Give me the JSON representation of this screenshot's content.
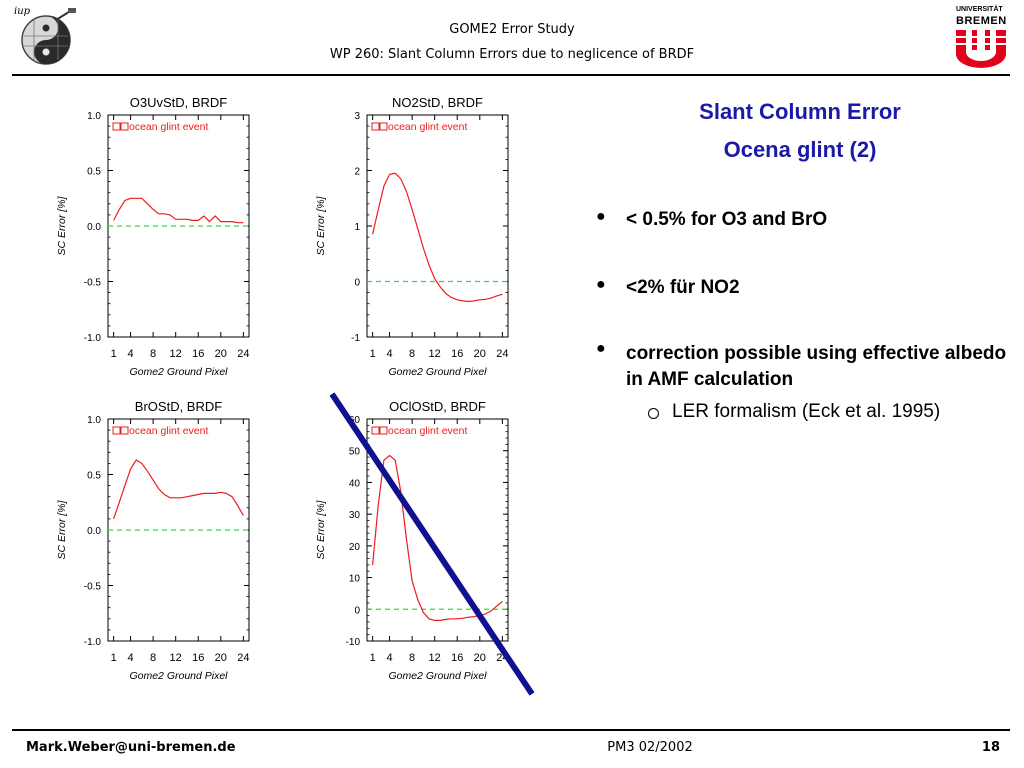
{
  "header": {
    "title": "GOME2 Error Study",
    "subtitle": "WP 260: Slant Column Errors due to neglicence of  BRDF"
  },
  "logos": {
    "left_logo_text": "iup",
    "right_logo_text_1": "UNIVERSITÄT",
    "right_logo_text_2": "BREMEN"
  },
  "slide": {
    "title_line1": "Slant Column Error",
    "title_line2": "Ocena glint (2)",
    "bullets": [
      "< 0.5% for O3 and BrO",
      "<2% für NO2",
      "correction possible using effective albedo in AMF calculation"
    ],
    "sub_bullet": "LER formalism (Eck et al. 1995)"
  },
  "footer": {
    "email": "Mark.Weber@uni-bremen.de",
    "date": "PM3 02/2002",
    "page": "18"
  },
  "colors": {
    "accent": "#1a1aa6",
    "series": "#ee1c1c",
    "zero_line": "#33dd33",
    "strike": "#101090"
  },
  "chart_data": [
    {
      "type": "line",
      "title": "O3UvStD, BRDF",
      "xlabel": "Gome2 Ground Pixel",
      "ylabel": "SC Error [%]",
      "legend": "ocean glint event",
      "xlim": [
        0,
        25
      ],
      "ylim": [
        -1.0,
        1.0
      ],
      "xticks": [
        1,
        4,
        8,
        12,
        16,
        20,
        24
      ],
      "yticks": [
        1.0,
        0.5,
        0.0,
        -0.5,
        -1.0
      ],
      "ytick_labels": [
        "1.0",
        "0.5",
        "0.0",
        "-0.5",
        "-1.0"
      ],
      "x": [
        1,
        2,
        3,
        4,
        5,
        6,
        7,
        8,
        9,
        10,
        11,
        12,
        13,
        14,
        15,
        16,
        17,
        18,
        19,
        20,
        21,
        22,
        23,
        24
      ],
      "values": [
        0.05,
        0.15,
        0.23,
        0.25,
        0.25,
        0.25,
        0.2,
        0.15,
        0.11,
        0.11,
        0.1,
        0.06,
        0.06,
        0.06,
        0.05,
        0.05,
        0.09,
        0.04,
        0.09,
        0.04,
        0.04,
        0.04,
        0.03,
        0.03
      ]
    },
    {
      "type": "line",
      "title": "NO2StD, BRDF",
      "xlabel": "Gome2 Ground Pixel",
      "ylabel": "SC Error [%]",
      "legend": "ocean glint event",
      "xlim": [
        0,
        25
      ],
      "ylim": [
        -1,
        3
      ],
      "xticks": [
        1,
        4,
        8,
        12,
        16,
        20,
        24
      ],
      "yticks": [
        3,
        2,
        1,
        0,
        -1
      ],
      "ytick_labels": [
        "3",
        "2",
        "1",
        "0",
        "-1"
      ],
      "x": [
        1,
        2,
        3,
        4,
        5,
        6,
        7,
        8,
        9,
        10,
        11,
        12,
        13,
        14,
        15,
        16,
        17,
        18,
        19,
        20,
        21,
        22,
        23,
        24
      ],
      "values": [
        0.85,
        1.3,
        1.72,
        1.93,
        1.95,
        1.85,
        1.62,
        1.3,
        0.95,
        0.6,
        0.3,
        0.05,
        -0.1,
        -0.22,
        -0.29,
        -0.33,
        -0.35,
        -0.36,
        -0.35,
        -0.33,
        -0.32,
        -0.3,
        -0.26,
        -0.23
      ]
    },
    {
      "type": "line",
      "title": "BrOStD, BRDF",
      "xlabel": "Gome2 Ground Pixel",
      "ylabel": "SC Error [%]",
      "legend": "ocean glint event",
      "xlim": [
        0,
        25
      ],
      "ylim": [
        -1.0,
        1.0
      ],
      "xticks": [
        1,
        4,
        8,
        12,
        16,
        20,
        24
      ],
      "yticks": [
        1.0,
        0.5,
        0.0,
        -0.5,
        -1.0
      ],
      "ytick_labels": [
        "1.0",
        "0.5",
        "0.0",
        "-0.5",
        "-1.0"
      ],
      "x": [
        1,
        2,
        3,
        4,
        5,
        6,
        7,
        8,
        9,
        10,
        11,
        12,
        13,
        14,
        15,
        16,
        17,
        18,
        19,
        20,
        21,
        22,
        23,
        24
      ],
      "values": [
        0.1,
        0.25,
        0.4,
        0.55,
        0.63,
        0.6,
        0.53,
        0.45,
        0.37,
        0.32,
        0.29,
        0.29,
        0.29,
        0.3,
        0.31,
        0.32,
        0.33,
        0.33,
        0.33,
        0.34,
        0.33,
        0.3,
        0.22,
        0.13
      ]
    },
    {
      "type": "line",
      "title": "OClOStD, BRDF",
      "xlabel": "Gome2 Ground Pixel",
      "ylabel": "SC Error [%]",
      "legend": "ocean glint event",
      "xlim": [
        0,
        25
      ],
      "ylim": [
        -10,
        60
      ],
      "xticks": [
        1,
        4,
        8,
        12,
        16,
        20,
        24
      ],
      "yticks": [
        60,
        50,
        40,
        30,
        20,
        10,
        0,
        -10
      ],
      "ytick_labels": [
        "60",
        "50",
        "40",
        "30",
        "20",
        "10",
        "0",
        "-10"
      ],
      "x": [
        1,
        2,
        3,
        4,
        5,
        6,
        7,
        8,
        9,
        10,
        11,
        12,
        13,
        14,
        15,
        16,
        17,
        18,
        19,
        20,
        21,
        22,
        23,
        24
      ],
      "values": [
        14,
        33,
        47,
        48.5,
        47,
        37,
        22,
        9,
        3,
        -1,
        -3,
        -3.5,
        -3.5,
        -3.2,
        -3,
        -3,
        -2.8,
        -2.5,
        -2.3,
        -2,
        -1.5,
        -0.5,
        1,
        2.5
      ]
    }
  ]
}
